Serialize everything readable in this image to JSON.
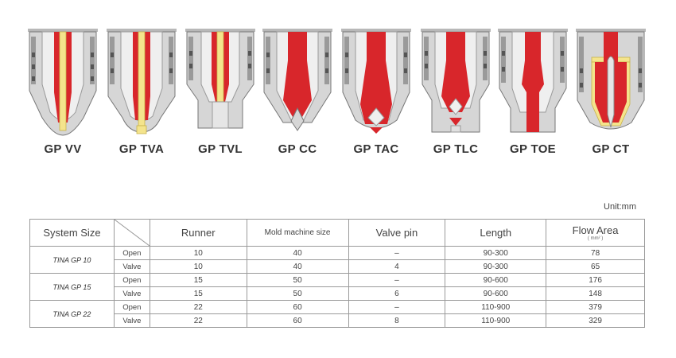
{
  "nozzles": [
    {
      "name": "GP VV",
      "type": "valve-vv"
    },
    {
      "name": "GP TVA",
      "type": "valve-tva"
    },
    {
      "name": "GP TVL",
      "type": "valve-tvl"
    },
    {
      "name": "GP CC",
      "type": "tip-cc"
    },
    {
      "name": "GP TAC",
      "type": "tip-tac"
    },
    {
      "name": "GP TLC",
      "type": "tip-tlc"
    },
    {
      "name": "GP TOE",
      "type": "tip-toe"
    },
    {
      "name": "GP CT",
      "type": "tip-ct"
    }
  ],
  "unit_label": "Unit:mm",
  "table": {
    "headers": {
      "system_size": "System Size",
      "runner": "Runner",
      "mold_machine_size": "Mold machine size",
      "valve_pin": "Valve pin",
      "length": "Length",
      "flow_area": "Flow Area",
      "flow_area_unit": "( mm² )"
    },
    "groups": [
      {
        "system": "TINA GP 10",
        "rows": [
          {
            "mode": "Open",
            "runner": "10",
            "mold": "40",
            "pin": "–",
            "length": "90-300",
            "flow": "78"
          },
          {
            "mode": "Valve",
            "runner": "10",
            "mold": "40",
            "pin": "4",
            "length": "90-300",
            "flow": "65"
          }
        ]
      },
      {
        "system": "TINA GP 15",
        "rows": [
          {
            "mode": "Open",
            "runner": "15",
            "mold": "50",
            "pin": "–",
            "length": "90-600",
            "flow": "176"
          },
          {
            "mode": "Valve",
            "runner": "15",
            "mold": "50",
            "pin": "6",
            "length": "90-600",
            "flow": "148"
          }
        ]
      },
      {
        "system": "TINA GP 22",
        "rows": [
          {
            "mode": "Open",
            "runner": "22",
            "mold": "60",
            "pin": "–",
            "length": "110-900",
            "flow": "379"
          },
          {
            "mode": "Valve",
            "runner": "22",
            "mold": "60",
            "pin": "8",
            "length": "110-900",
            "flow": "329"
          }
        ]
      }
    ]
  },
  "colors": {
    "melt": "#d8262b",
    "pin": "#f4e48c",
    "steel": "#cfcfcf",
    "steel_dark": "#8e8e8e"
  }
}
